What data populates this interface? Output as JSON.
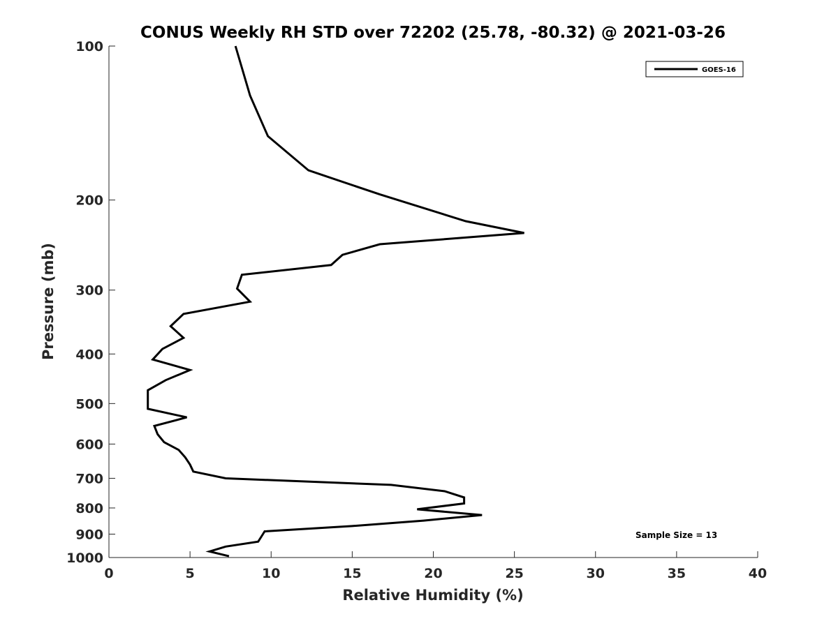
{
  "chart_data": {
    "type": "line",
    "title": "CONUS Weekly RH STD over 72202 (25.78, -80.32) @ 2021-03-26",
    "xlabel": "Relative Humidity (%)",
    "ylabel": "Pressure (mb)",
    "xlim": [
      0,
      40
    ],
    "ylim": [
      100,
      1000
    ],
    "y_scale": "log",
    "y_reversed": true,
    "x_ticks": [
      0,
      5,
      10,
      15,
      20,
      25,
      30,
      35,
      40
    ],
    "x_tick_labels": [
      "0",
      "5",
      "10",
      "15",
      "20",
      "25",
      "30",
      "35",
      "40"
    ],
    "y_ticks": [
      100,
      200,
      300,
      400,
      500,
      600,
      700,
      800,
      900,
      1000
    ],
    "y_tick_labels": [
      "100",
      "200",
      "300",
      "400",
      "500",
      "600",
      "700",
      "800",
      "900",
      "1000"
    ],
    "grid": false,
    "legend": {
      "position": "top-right",
      "entries": [
        "GOES-16"
      ]
    },
    "annotation": "Sample Size = 13",
    "series": [
      {
        "name": "GOES-16",
        "color": "#000000",
        "points": [
          [
            7.8,
            100
          ],
          [
            8.7,
            125
          ],
          [
            9.8,
            150
          ],
          [
            12.3,
            175
          ],
          [
            16.7,
            195
          ],
          [
            22.0,
            220
          ],
          [
            25.6,
            232
          ],
          [
            16.7,
            244
          ],
          [
            14.4,
            256
          ],
          [
            13.7,
            268
          ],
          [
            8.2,
            280
          ],
          [
            7.9,
            298
          ],
          [
            8.7,
            316
          ],
          [
            4.6,
            334
          ],
          [
            3.8,
            353
          ],
          [
            4.6,
            372
          ],
          [
            3.3,
            391
          ],
          [
            2.7,
            410
          ],
          [
            5.0,
            430
          ],
          [
            3.5,
            450
          ],
          [
            2.4,
            471
          ],
          [
            2.4,
            492
          ],
          [
            2.4,
            512
          ],
          [
            4.8,
            532
          ],
          [
            2.8,
            553
          ],
          [
            3.0,
            574
          ],
          [
            3.4,
            595
          ],
          [
            4.3,
            616
          ],
          [
            4.7,
            637
          ],
          [
            5.0,
            658
          ],
          [
            5.2,
            679
          ],
          [
            7.2,
            700
          ],
          [
            17.4,
            721
          ],
          [
            20.7,
            742
          ],
          [
            21.9,
            763
          ],
          [
            21.9,
            784
          ],
          [
            19.0,
            805
          ],
          [
            23.0,
            826
          ],
          [
            19.4,
            847
          ],
          [
            15.0,
            868
          ],
          [
            9.6,
            889
          ],
          [
            9.4,
            910
          ],
          [
            9.2,
            931
          ],
          [
            7.2,
            952
          ],
          [
            6.2,
            973
          ],
          [
            7.4,
            994
          ]
        ]
      }
    ]
  }
}
